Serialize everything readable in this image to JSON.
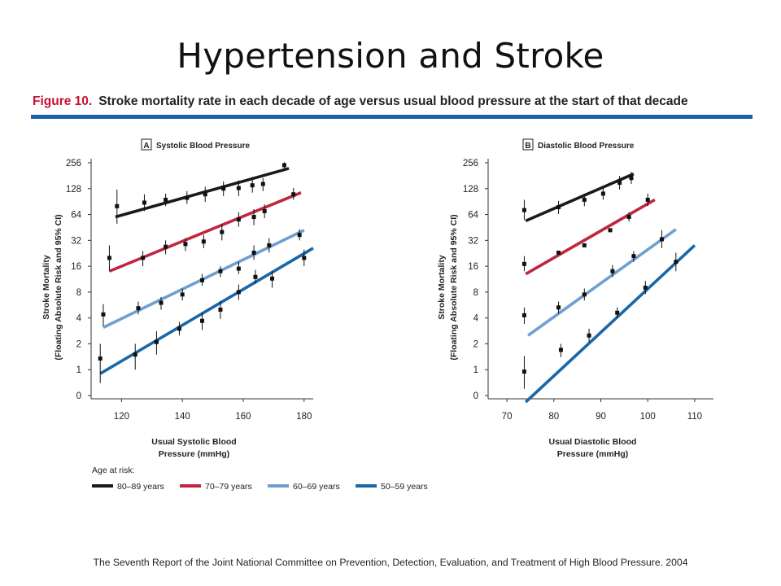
{
  "slide": {
    "title": "Hypertension and Stroke",
    "figure_label": "Figure 10.",
    "figure_caption": "Stroke mortality rate in each decade of age versus usual blood pressure at the start of that decade",
    "footnote": "The Seventh Report of the Joint National Committee on Prevention, Detection, Evaluation, and Treatment of High Blood Pressure. 2004"
  },
  "colors": {
    "rule": "#1f5fa8",
    "caption_label": "#c8102e"
  },
  "legend": {
    "title": "Age at risk:",
    "items": [
      {
        "label": "80–89 years",
        "color": "#1a1a1a"
      },
      {
        "label": "70–79 years",
        "color": "#c0263f"
      },
      {
        "label": "60–69 years",
        "color": "#6e9fd1"
      },
      {
        "label": "50–59 years",
        "color": "#1967a8"
      }
    ]
  },
  "chart_data": [
    {
      "type": "scatter",
      "panel_letter": "A",
      "title": "Systolic Blood Pressure",
      "xlabel": "Usual Systolic Blood Pressure (mmHg)",
      "xlabel_lines": [
        "Usual Systolic Blood",
        "Pressure (mmHg)"
      ],
      "ylabel_lines": [
        "Stroke Mortality",
        "(Floating Absolute Risk and 95% CI)"
      ],
      "xlim": [
        110,
        183
      ],
      "xticks": [
        120,
        140,
        160,
        180
      ],
      "yscale": "log2",
      "yticks": [
        "0",
        "1",
        "2",
        "4",
        "8",
        "16",
        "32",
        "64",
        "128",
        "256"
      ],
      "series": [
        {
          "name": "80–89 years",
          "color": "#1a1a1a",
          "fit": {
            "x": [
              118,
              175
            ],
            "y": [
              60,
              220
            ]
          },
          "points": [
            {
              "x": 118.5,
              "y": 80,
              "lo": 50,
              "hi": 125
            },
            {
              "x": 127.5,
              "y": 88,
              "lo": 70,
              "hi": 110
            },
            {
              "x": 134.5,
              "y": 95,
              "lo": 80,
              "hi": 112
            },
            {
              "x": 141.5,
              "y": 100,
              "lo": 85,
              "hi": 120
            },
            {
              "x": 147.5,
              "y": 110,
              "lo": 90,
              "hi": 135
            },
            {
              "x": 153.5,
              "y": 128,
              "lo": 105,
              "hi": 155
            },
            {
              "x": 158.5,
              "y": 130,
              "lo": 105,
              "hi": 160
            },
            {
              "x": 163,
              "y": 140,
              "lo": 115,
              "hi": 175
            },
            {
              "x": 166.5,
              "y": 145,
              "lo": 120,
              "hi": 170
            },
            {
              "x": 173.5,
              "y": 240,
              "lo": 220,
              "hi": 260
            }
          ]
        },
        {
          "name": "70–79 years",
          "color": "#c0263f",
          "fit": {
            "x": [
              116,
              179
            ],
            "y": [
              14,
              115
            ]
          },
          "points": [
            {
              "x": 116,
              "y": 20,
              "lo": 14,
              "hi": 28
            },
            {
              "x": 127,
              "y": 20,
              "lo": 16,
              "hi": 24
            },
            {
              "x": 134.5,
              "y": 27,
              "lo": 22,
              "hi": 32
            },
            {
              "x": 141,
              "y": 29,
              "lo": 24,
              "hi": 34
            },
            {
              "x": 147,
              "y": 31,
              "lo": 26,
              "hi": 37
            },
            {
              "x": 153,
              "y": 40,
              "lo": 32,
              "hi": 50
            },
            {
              "x": 158.5,
              "y": 56,
              "lo": 46,
              "hi": 68
            },
            {
              "x": 163.5,
              "y": 60,
              "lo": 48,
              "hi": 74
            },
            {
              "x": 167,
              "y": 70,
              "lo": 58,
              "hi": 84
            },
            {
              "x": 176.5,
              "y": 110,
              "lo": 95,
              "hi": 130
            }
          ]
        },
        {
          "name": "60–69 years",
          "color": "#6e9fd1",
          "fit": {
            "x": [
              114,
              180
            ],
            "y": [
              3.1,
              42
            ]
          },
          "points": [
            {
              "x": 114,
              "y": 4.4,
              "lo": 3.2,
              "hi": 5.8
            },
            {
              "x": 125.5,
              "y": 5.2,
              "lo": 4.4,
              "hi": 6.2
            },
            {
              "x": 133,
              "y": 6,
              "lo": 5,
              "hi": 7
            },
            {
              "x": 140,
              "y": 7.5,
              "lo": 6.4,
              "hi": 8.8
            },
            {
              "x": 146.5,
              "y": 11,
              "lo": 9.5,
              "hi": 13
            },
            {
              "x": 152.5,
              "y": 14,
              "lo": 12,
              "hi": 16
            },
            {
              "x": 158.5,
              "y": 15,
              "lo": 13,
              "hi": 18
            },
            {
              "x": 163.5,
              "y": 23,
              "lo": 19,
              "hi": 28
            },
            {
              "x": 168.5,
              "y": 28,
              "lo": 23,
              "hi": 34
            },
            {
              "x": 178.5,
              "y": 37,
              "lo": 32,
              "hi": 43
            }
          ]
        },
        {
          "name": "50–59 years",
          "color": "#1967a8",
          "fit": {
            "x": [
              113,
              183
            ],
            "y": [
              0.9,
              26
            ]
          },
          "points": [
            {
              "x": 113,
              "y": 1.35,
              "lo": 0.7,
              "hi": 2.0
            },
            {
              "x": 124.5,
              "y": 1.5,
              "lo": 1.0,
              "hi": 2.0
            },
            {
              "x": 131.5,
              "y": 2.1,
              "lo": 1.5,
              "hi": 2.8
            },
            {
              "x": 139,
              "y": 3.0,
              "lo": 2.5,
              "hi": 3.6
            },
            {
              "x": 146.5,
              "y": 3.7,
              "lo": 2.9,
              "hi": 4.6
            },
            {
              "x": 152.5,
              "y": 5,
              "lo": 3.9,
              "hi": 6.3
            },
            {
              "x": 158.5,
              "y": 8,
              "lo": 6.5,
              "hi": 9.8
            },
            {
              "x": 164,
              "y": 12,
              "lo": 10,
              "hi": 14.5
            },
            {
              "x": 169.5,
              "y": 11.5,
              "lo": 9,
              "hi": 14
            },
            {
              "x": 180,
              "y": 20,
              "lo": 16,
              "hi": 25
            }
          ]
        }
      ]
    },
    {
      "type": "scatter",
      "panel_letter": "B",
      "title": "Diastolic Blood Pressure",
      "xlabel": "Usual Diastolic Blood Pressure (mmHg)",
      "xlabel_lines": [
        "Usual Diastolic Blood",
        "Pressure (mmHg)"
      ],
      "ylabel_lines": [
        "Stroke Mortality",
        "(Floating Absolute Risk and 95% CI)"
      ],
      "xlim": [
        66,
        114
      ],
      "xticks": [
        70,
        80,
        90,
        100,
        110
      ],
      "yscale": "log2",
      "yticks": [
        "0",
        "1",
        "2",
        "4",
        "8",
        "16",
        "32",
        "64",
        "128",
        "256"
      ],
      "series": [
        {
          "name": "80–89 years",
          "color": "#1a1a1a",
          "fit": {
            "x": [
              74,
              97
            ],
            "y": [
              54,
              190
            ]
          },
          "points": [
            {
              "x": 73.7,
              "y": 72,
              "lo": 55,
              "hi": 95
            },
            {
              "x": 81,
              "y": 78,
              "lo": 65,
              "hi": 92
            },
            {
              "x": 86.5,
              "y": 95,
              "lo": 80,
              "hi": 112
            },
            {
              "x": 90.5,
              "y": 112,
              "lo": 95,
              "hi": 130
            },
            {
              "x": 94,
              "y": 150,
              "lo": 125,
              "hi": 180
            },
            {
              "x": 96.5,
              "y": 170,
              "lo": 145,
              "hi": 200
            }
          ]
        },
        {
          "name": "70–79 years",
          "color": "#c0263f",
          "fit": {
            "x": [
              74,
              101.5
            ],
            "y": [
              13,
              95
            ]
          },
          "points": [
            {
              "x": 73.7,
              "y": 17,
              "lo": 14,
              "hi": 21
            },
            {
              "x": 81,
              "y": 23,
              "lo": 22,
              "hi": 24
            },
            {
              "x": 86.5,
              "y": 28,
              "lo": 27,
              "hi": 29
            },
            {
              "x": 92,
              "y": 42,
              "lo": 41,
              "hi": 43
            },
            {
              "x": 96,
              "y": 60,
              "lo": 53,
              "hi": 68
            },
            {
              "x": 100,
              "y": 95,
              "lo": 80,
              "hi": 112
            }
          ]
        },
        {
          "name": "60–69 years",
          "color": "#6e9fd1",
          "fit": {
            "x": [
              74.5,
              106
            ],
            "y": [
              2.5,
              43
            ]
          },
          "points": [
            {
              "x": 73.7,
              "y": 4.3,
              "lo": 3.4,
              "hi": 5.3
            },
            {
              "x": 81,
              "y": 5.3,
              "lo": 4.5,
              "hi": 6.2
            },
            {
              "x": 86.5,
              "y": 7.5,
              "lo": 6.4,
              "hi": 8.8
            },
            {
              "x": 92.5,
              "y": 14,
              "lo": 12,
              "hi": 16.5
            },
            {
              "x": 97,
              "y": 21,
              "lo": 18,
              "hi": 24
            },
            {
              "x": 103,
              "y": 33,
              "lo": 26,
              "hi": 42
            }
          ]
        },
        {
          "name": "50–59 years",
          "color": "#1967a8",
          "fit": {
            "x": [
              74,
              110
            ],
            "y": [
              0.42,
              28
            ]
          },
          "points": [
            {
              "x": 73.7,
              "y": 0.95,
              "lo": 0.6,
              "hi": 1.45
            },
            {
              "x": 81.5,
              "y": 1.7,
              "lo": 1.4,
              "hi": 2.0
            },
            {
              "x": 87.5,
              "y": 2.5,
              "lo": 2.1,
              "hi": 3.0
            },
            {
              "x": 93.5,
              "y": 4.6,
              "lo": 4.0,
              "hi": 5.3
            },
            {
              "x": 99.5,
              "y": 9,
              "lo": 7.6,
              "hi": 10.8
            },
            {
              "x": 106,
              "y": 18,
              "lo": 14,
              "hi": 23
            }
          ]
        }
      ]
    }
  ]
}
